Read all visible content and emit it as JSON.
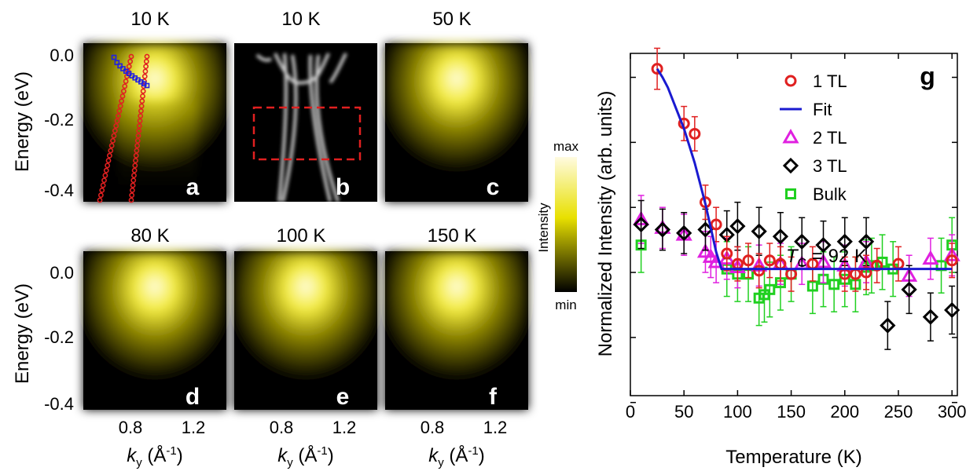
{
  "arpes": {
    "energy_axis_label": "Energy (eV)",
    "energy_ticks": [
      "0.0",
      "-0.2",
      "-0.4"
    ],
    "k_axis_label": "k",
    "k_axis_sub": "y",
    "k_axis_unit": " (Å",
    "k_axis_sup": "-1",
    "k_axis_close": ")",
    "k_ticks": [
      "0.8",
      "1.2"
    ],
    "panels": [
      {
        "temp": "10 K",
        "letter": "a"
      },
      {
        "temp": "10 K",
        "letter": "b"
      },
      {
        "temp": "50 K",
        "letter": "c"
      },
      {
        "temp": "80 K",
        "letter": "d"
      },
      {
        "temp": "100 K",
        "letter": "e"
      },
      {
        "temp": "150 K",
        "letter": "f"
      }
    ],
    "colorbar": {
      "max": "max",
      "min": "min",
      "label": "Intensity",
      "top_color": "#fffbe0",
      "mid_color": "#e8e000",
      "bottom_color": "#000000"
    },
    "marker_colors": {
      "band_red": "#e02020",
      "band_blue": "#2020e0",
      "box_red": "#e02020"
    }
  },
  "chart_data": {
    "type": "scatter",
    "panel_letter": "g",
    "xlabel": "Temperature (K)",
    "ylabel": "Normalized Intensity (arb. units)",
    "xlim": [
      0,
      305
    ],
    "x_ticks": [
      "0",
      "50",
      "100",
      "150",
      "200",
      "250",
      "300"
    ],
    "ylim": [
      0,
      1
    ],
    "annotation": {
      "symbol": "T",
      "sub": "C",
      "text": " = 92 K"
    },
    "series": [
      {
        "name": "1 TL",
        "marker": "circle",
        "color": "#e02020",
        "x": [
          25,
          50,
          60,
          70,
          80,
          90,
          100,
          110,
          120,
          130,
          140,
          150,
          170,
          200,
          210,
          220,
          230,
          250,
          300
        ],
        "y": [
          0.955,
          0.795,
          0.765,
          0.565,
          0.5,
          0.415,
          0.385,
          0.395,
          0.365,
          0.395,
          0.385,
          0.355,
          0.385,
          0.355,
          0.355,
          0.36,
          0.38,
          0.385,
          0.395
        ],
        "err": [
          0.06,
          0.05,
          0.05,
          0.05,
          0.05,
          0.05,
          0.05,
          0.05,
          0.05,
          0.05,
          0.05,
          0.05,
          0.05,
          0.05,
          0.05,
          0.05,
          0.05,
          0.05,
          0.05
        ]
      },
      {
        "name": "Fit",
        "marker": "line",
        "color": "#1a1ad0",
        "x": [
          25,
          30,
          35,
          40,
          45,
          50,
          55,
          60,
          65,
          70,
          75,
          80,
          85,
          90,
          92,
          300
        ],
        "y": [
          0.955,
          0.93,
          0.9,
          0.86,
          0.82,
          0.78,
          0.73,
          0.68,
          0.62,
          0.56,
          0.49,
          0.42,
          0.37,
          0.37,
          0.37,
          0.37
        ]
      },
      {
        "name": "2 TL",
        "marker": "triangle",
        "color": "#e020e0",
        "x": [
          10,
          30,
          50,
          70,
          75,
          80,
          90,
          100,
          120,
          140,
          160,
          180,
          200,
          220,
          260,
          280,
          300
        ],
        "y": [
          0.515,
          0.49,
          0.47,
          0.42,
          0.405,
          0.39,
          0.4,
          0.375,
          0.38,
          0.385,
          0.385,
          0.39,
          0.38,
          0.39,
          0.35,
          0.4,
          0.41
        ],
        "err": [
          0.07,
          0.06,
          0.06,
          0.06,
          0.06,
          0.06,
          0.06,
          0.06,
          0.06,
          0.06,
          0.06,
          0.06,
          0.06,
          0.06,
          0.06,
          0.06,
          0.06
        ]
      },
      {
        "name": "3 TL",
        "marker": "diamond",
        "color": "#000000",
        "x": [
          10,
          30,
          50,
          70,
          90,
          100,
          120,
          140,
          160,
          180,
          200,
          220,
          240,
          260,
          280,
          300
        ],
        "y": [
          0.5,
          0.485,
          0.475,
          0.485,
          0.47,
          0.495,
          0.48,
          0.465,
          0.45,
          0.44,
          0.45,
          0.45,
          0.205,
          0.31,
          0.23,
          0.25
        ],
        "err": [
          0.07,
          0.06,
          0.06,
          0.06,
          0.07,
          0.07,
          0.07,
          0.07,
          0.07,
          0.07,
          0.07,
          0.07,
          0.07,
          0.07,
          0.07,
          0.07
        ]
      },
      {
        "name": "Bulk",
        "marker": "square",
        "color": "#20d020",
        "x": [
          10,
          90,
          100,
          110,
          120,
          125,
          130,
          140,
          150,
          170,
          180,
          190,
          200,
          210,
          220,
          225,
          235,
          245,
          290,
          300
        ],
        "y": [
          0.44,
          0.37,
          0.355,
          0.355,
          0.285,
          0.295,
          0.31,
          0.33,
          0.355,
          0.32,
          0.34,
          0.325,
          0.34,
          0.325,
          0.375,
          0.38,
          0.39,
          0.37,
          0.38,
          0.44
        ],
        "err": [
          0.08,
          0.08,
          0.08,
          0.08,
          0.08,
          0.08,
          0.08,
          0.08,
          0.08,
          0.08,
          0.08,
          0.08,
          0.08,
          0.08,
          0.08,
          0.08,
          0.08,
          0.08,
          0.08,
          0.08
        ]
      }
    ]
  }
}
